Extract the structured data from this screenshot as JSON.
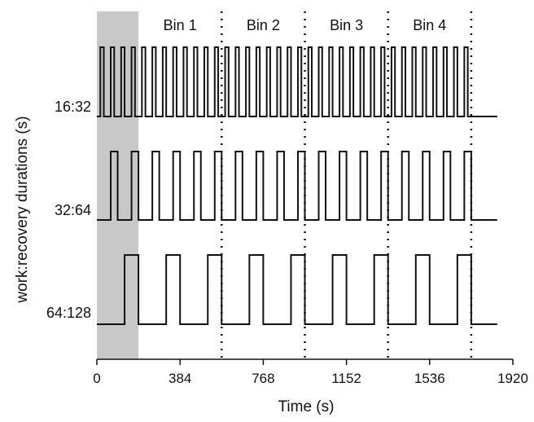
{
  "chart_data": {
    "type": "line",
    "xlabel": "Time (s)",
    "ylabel": "work:recovery durations (s)",
    "xlim": [
      0,
      1920
    ],
    "x_ticks": [
      {
        "value": 0,
        "label": "0"
      },
      {
        "value": 384,
        "label": "384"
      },
      {
        "value": 768,
        "label": "768"
      },
      {
        "value": 1152,
        "label": "1152"
      },
      {
        "value": 1536,
        "label": "1536"
      },
      {
        "value": 1920,
        "label": "1920"
      }
    ],
    "shaded_region": {
      "x_start": 0,
      "x_end": 192,
      "color": "#c8c8c8"
    },
    "bins": [
      {
        "label": "Bin 1",
        "x_start": 192,
        "x_end": 576
      },
      {
        "label": "Bin 2",
        "x_start": 576,
        "x_end": 960
      },
      {
        "label": "Bin 3",
        "x_start": 960,
        "x_end": 1344
      },
      {
        "label": "Bin 4",
        "x_start": 1344,
        "x_end": 1728
      }
    ],
    "bin_boundaries": [
      576,
      960,
      1344,
      1728
    ],
    "series": [
      {
        "name": "16:32",
        "work_duration": 16,
        "recovery_duration": 32,
        "first_work_start": 16,
        "end_time": 1728,
        "trace_end": 1848
      },
      {
        "name": "32:64",
        "work_duration": 32,
        "recovery_duration": 64,
        "first_work_start": 64,
        "end_time": 1728,
        "trace_end": 1848
      },
      {
        "name": "64:128",
        "work_duration": 64,
        "recovery_duration": 128,
        "first_work_start": 128,
        "end_time": 1728,
        "trace_end": 1848
      }
    ],
    "grid": false,
    "colors": {
      "line": "#111111",
      "shade": "#c8c8c8",
      "axis": "#111111"
    }
  }
}
